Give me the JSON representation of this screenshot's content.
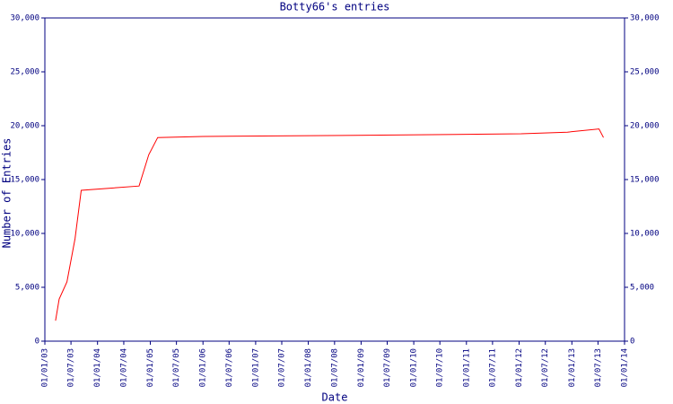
{
  "chart_data": {
    "type": "line",
    "title": "Botty66's entries",
    "x_label": "Date",
    "y_label": "Number of Entries",
    "x": [
      "2003-03-16",
      "2003-04-10",
      "2003-06-03",
      "2003-07-29",
      "2003-09-10",
      "2004-10-15",
      "2004-12-21",
      "2005-02-21",
      "2006-01-01",
      "2008-11-26",
      "2012-01-15",
      "2012-12-01",
      "2013-07-08",
      "2013-08-08"
    ],
    "series": [
      {
        "name": "entries",
        "color": "#ff0000",
        "values": [
          1900,
          3900,
          5500,
          9500,
          14000,
          14400,
          17300,
          18900,
          19000,
          19100,
          19250,
          19400,
          19700,
          18900
        ]
      }
    ],
    "xlim": [
      "2003-01-01",
      "2014-01-01"
    ],
    "xticks": [
      {
        "value": "2003-01-01",
        "label": "01/01/03"
      },
      {
        "value": "2003-07-01",
        "label": "01/07/03"
      },
      {
        "value": "2004-01-01",
        "label": "01/01/04"
      },
      {
        "value": "2004-07-01",
        "label": "01/07/04"
      },
      {
        "value": "2005-01-01",
        "label": "01/01/05"
      },
      {
        "value": "2005-07-01",
        "label": "01/07/05"
      },
      {
        "value": "2006-01-01",
        "label": "01/01/06"
      },
      {
        "value": "2006-07-01",
        "label": "01/07/06"
      },
      {
        "value": "2007-01-01",
        "label": "01/01/07"
      },
      {
        "value": "2007-07-01",
        "label": "01/07/07"
      },
      {
        "value": "2008-01-01",
        "label": "01/01/08"
      },
      {
        "value": "2008-07-01",
        "label": "01/07/08"
      },
      {
        "value": "2009-01-01",
        "label": "01/01/09"
      },
      {
        "value": "2009-07-01",
        "label": "01/07/09"
      },
      {
        "value": "2010-01-01",
        "label": "01/01/10"
      },
      {
        "value": "2010-07-01",
        "label": "01/07/10"
      },
      {
        "value": "2011-01-01",
        "label": "01/01/11"
      },
      {
        "value": "2011-07-01",
        "label": "01/07/11"
      },
      {
        "value": "2012-01-01",
        "label": "01/01/12"
      },
      {
        "value": "2012-07-01",
        "label": "01/07/12"
      },
      {
        "value": "2013-01-01",
        "label": "01/01/13"
      },
      {
        "value": "2013-07-01",
        "label": "01/07/13"
      },
      {
        "value": "2014-01-01",
        "label": "01/01/14"
      }
    ],
    "ylim": [
      0,
      30000
    ],
    "yticks": [
      0,
      {
        "value": 5000,
        "label": "5,000"
      },
      {
        "value": 10000,
        "label": "10,000"
      },
      {
        "value": 15000,
        "label": "15,000"
      },
      {
        "value": 20000,
        "label": "20,000"
      },
      {
        "value": 25000,
        "label": "25,000"
      },
      {
        "value": 30000,
        "label": "30,000"
      }
    ],
    "right_axis": true
  }
}
